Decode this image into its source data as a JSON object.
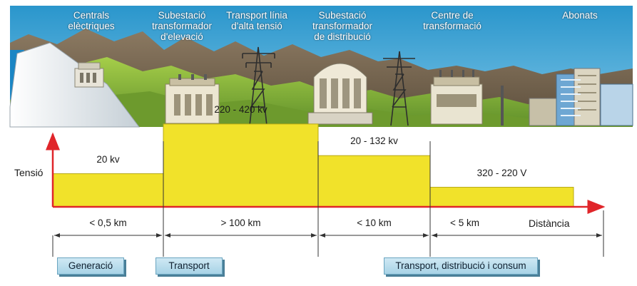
{
  "stages": [
    {
      "name": "centrals",
      "title": "Centrals\nelèctriques"
    },
    {
      "name": "subestacio-elevacio",
      "title": "Subestació\ntransformador\nd'elevació"
    },
    {
      "name": "transport-alta",
      "title": "Transport línia\nd'alta tensió"
    },
    {
      "name": "subestacio-distribucio",
      "title": "Subestació\ntransformador\nde distribució"
    },
    {
      "name": "centre-transformacio",
      "title": "Centre de\ntransformació"
    },
    {
      "name": "abonats",
      "title": "Abonats"
    }
  ],
  "graph": {
    "y_label": "Tensió",
    "x_label": "Distància",
    "levels": [
      {
        "label": "20 kv",
        "relative_height": 0.22
      },
      {
        "label": "220 - 420 kv",
        "relative_height": 0.55
      },
      {
        "label": "20 - 132 kv",
        "relative_height": 0.34
      },
      {
        "label": "320 - 220 V",
        "relative_height": 0.13
      }
    ],
    "distances": [
      "< 0,5 km",
      "> 100 km",
      "< 10 km",
      "< 5 km"
    ]
  },
  "phases": [
    "Generació",
    "Transport",
    "Transport, distribució i consum"
  ],
  "colors": {
    "sky": "#2f9fd3",
    "mountain": "#7a6a55",
    "grass": "#8fbf3a",
    "fill": "#f1e22a",
    "fill_edge": "#b8a914",
    "axis": "#e0252a"
  }
}
